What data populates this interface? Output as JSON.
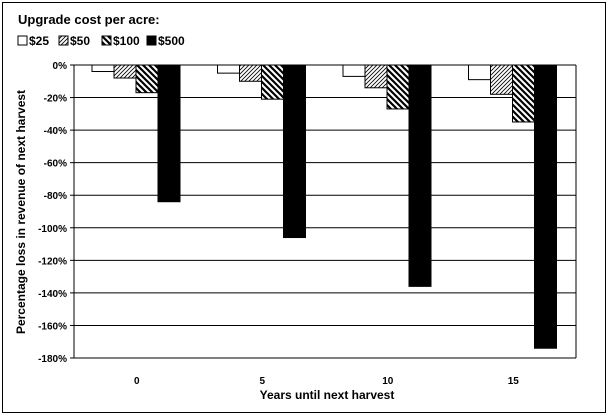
{
  "chart_data": {
    "type": "bar",
    "title": "",
    "legend_title": "Upgrade cost per acre:",
    "legend_position": "top-left",
    "xlabel": "Years until next harvest",
    "ylabel": "Percentage loss in revenue of next harvest",
    "categories": [
      "0",
      "5",
      "10",
      "15"
    ],
    "y_ticks": [
      "0%",
      "-20%",
      "-40%",
      "-60%",
      "-80%",
      "-100%",
      "-120%",
      "-140%",
      "-160%",
      "-180%"
    ],
    "y_tick_values": [
      0,
      -20,
      -40,
      -60,
      -80,
      -100,
      -120,
      -140,
      -160,
      -180
    ],
    "ylim": [
      -180,
      0
    ],
    "grid": "horizontal major gridlines",
    "series": [
      {
        "name": "$25",
        "values": [
          -4,
          -5,
          -7,
          -9
        ],
        "pattern": "white"
      },
      {
        "name": "$50",
        "values": [
          -8,
          -10,
          -14,
          -18
        ],
        "pattern": "light-diagonal"
      },
      {
        "name": "$100",
        "values": [
          -17,
          -21,
          -27,
          -35
        ],
        "pattern": "wide-diagonal"
      },
      {
        "name": "$500",
        "values": [
          -84,
          -106,
          -136,
          -174
        ],
        "pattern": "black"
      }
    ]
  }
}
